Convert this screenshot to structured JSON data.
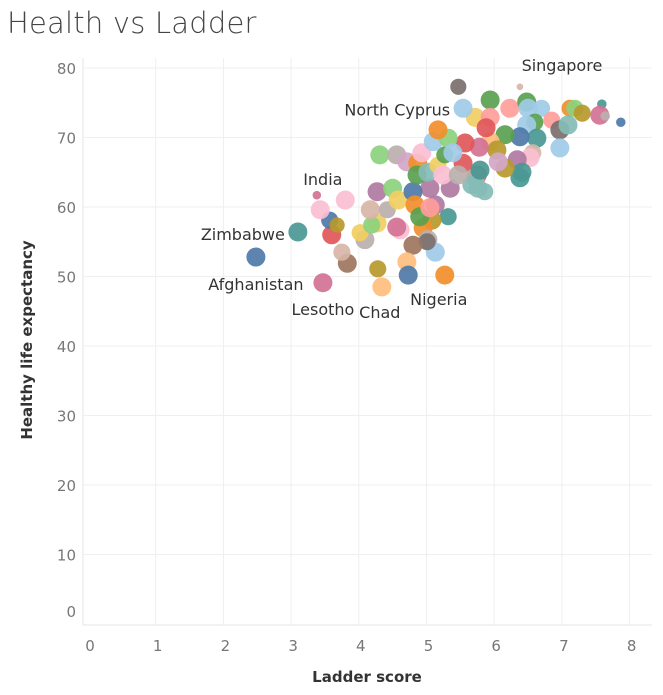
{
  "title": "Health vs Ladder",
  "chart_data": {
    "type": "scatter",
    "title": "Health vs Ladder",
    "xlabel": "Ladder score",
    "ylabel": "Healthy life expectancy",
    "xlim": [
      0,
      8.3
    ],
    "ylim": [
      -2,
      82
    ],
    "xticks": [
      "0",
      "1",
      "2",
      "3",
      "4",
      "5",
      "6",
      "7",
      "8"
    ],
    "yticks": [
      "0",
      "10",
      "20",
      "30",
      "40",
      "50",
      "60",
      "70",
      "80"
    ],
    "grid": true,
    "legend": "none",
    "labeled_points": [
      {
        "label": "Singapore",
        "x": 6.38,
        "y": 77.3,
        "color": "#D7B5A6",
        "size": 0.35
      },
      {
        "label": "North Cyprus",
        "x": 5.54,
        "y": 74.2,
        "color": "#A0CBE8",
        "size": 1
      },
      {
        "label": "India",
        "x": 3.38,
        "y": 61.7,
        "color": "#D37295",
        "size": 0.45
      },
      {
        "label": "Zimbabwe",
        "x": 3.1,
        "y": 56.4,
        "color": "#499894",
        "size": 1
      },
      {
        "label": "Afghanistan",
        "x": 2.48,
        "y": 52.8,
        "color": "#4E79A7",
        "size": 1
      },
      {
        "label": "Lesotho",
        "x": 3.47,
        "y": 49.1,
        "color": "#D37295",
        "size": 1
      },
      {
        "label": "Chad",
        "x": 4.34,
        "y": 48.5,
        "color": "#FFBE7D",
        "size": 1
      },
      {
        "label": "Nigeria",
        "x": 5.27,
        "y": 50.2,
        "color": "#F28E2B",
        "size": 1
      }
    ],
    "points": [
      [
        5.47,
        77.3,
        "#79706E",
        0.85
      ],
      [
        5.94,
        75.4,
        "#59A14F",
        1
      ],
      [
        5.72,
        72.9,
        "#F1CE63",
        1
      ],
      [
        5.94,
        72.9,
        "#FF9D9A",
        1
      ],
      [
        6.23,
        74.2,
        "#FF9D9A",
        1
      ],
      [
        6.48,
        75.1,
        "#59A14F",
        1
      ],
      [
        6.5,
        74.2,
        "#A0CBE8",
        1
      ],
      [
        6.7,
        74.2,
        "#A0CBE8",
        0.9
      ],
      [
        6.6,
        72.2,
        "#59A14F",
        0.9
      ],
      [
        6.48,
        71.8,
        "#A0CBE8",
        1
      ],
      [
        6.85,
        72.5,
        "#FF9D9A",
        0.9
      ],
      [
        7.12,
        74.2,
        "#F28E2B",
        0.9
      ],
      [
        7.19,
        74.2,
        "#8CD17D",
        0.9
      ],
      [
        7.3,
        73.5,
        "#B6992D",
        0.9
      ],
      [
        7.59,
        74.8,
        "#499894",
        0.5
      ],
      [
        7.56,
        73.2,
        "#D37295",
        1
      ],
      [
        7.64,
        73.1,
        "#BAB0AC",
        0.5
      ],
      [
        7.87,
        72.2,
        "#4E79A7",
        0.5
      ],
      [
        6.97,
        71.1,
        "#79706E",
        1
      ],
      [
        7.09,
        71.8,
        "#86BCB6",
        1
      ],
      [
        6.63,
        69.9,
        "#499894",
        1
      ],
      [
        6.97,
        68.5,
        "#A0CBE8",
        1
      ],
      [
        6.38,
        70.1,
        "#4E79A7",
        1
      ],
      [
        6.57,
        67.8,
        "#D7B5A6",
        0.9
      ],
      [
        6.53,
        67.1,
        "#FABFD2",
        1
      ],
      [
        6.34,
        66.8,
        "#B07AA1",
        1
      ],
      [
        6.41,
        65.0,
        "#499894",
        1
      ],
      [
        6.38,
        64.2,
        "#499894",
        1
      ],
      [
        6.16,
        65.6,
        "#B6992D",
        1
      ],
      [
        6.16,
        70.4,
        "#59A14F",
        1
      ],
      [
        5.94,
        69.4,
        "#FFBE7D",
        1
      ],
      [
        6.04,
        68.2,
        "#B6992D",
        1
      ],
      [
        6.06,
        66.5,
        "#D4A6C8",
        1
      ],
      [
        5.88,
        71.4,
        "#E15759",
        1
      ],
      [
        5.78,
        68.6,
        "#D37295",
        1
      ],
      [
        5.57,
        69.2,
        "#E15759",
        1
      ],
      [
        5.54,
        66.3,
        "#E15759",
        1
      ],
      [
        5.75,
        64.6,
        "#E15759",
        1
      ],
      [
        5.72,
        64.3,
        "#BAB0AC",
        1
      ],
      [
        5.76,
        62.7,
        "#86BCB6",
        1
      ],
      [
        5.86,
        62.2,
        "#86BCB6",
        0.9
      ],
      [
        5.67,
        63.2,
        "#86BCB6",
        1
      ],
      [
        5.35,
        62.7,
        "#B07AA1",
        1
      ],
      [
        5.05,
        62.7,
        "#B07AA1",
        1
      ],
      [
        5.13,
        60.3,
        "#B07AA1",
        1
      ],
      [
        5.32,
        58.6,
        "#499894",
        0.9
      ],
      [
        5.08,
        58.1,
        "#B6992D",
        1
      ],
      [
        4.95,
        57.0,
        "#F28E2B",
        1
      ],
      [
        5.02,
        55.3,
        "#BAB0AC",
        1
      ],
      [
        5.13,
        53.5,
        "#A0CBE8",
        1
      ],
      [
        5.01,
        55.0,
        "#79706E",
        0.9
      ],
      [
        4.8,
        54.5,
        "#9D7660",
        1
      ],
      [
        4.71,
        52.1,
        "#FFBE7D",
        1
      ],
      [
        4.73,
        50.2,
        "#4E79A7",
        1
      ],
      [
        4.28,
        51.1,
        "#B6992D",
        0.9
      ],
      [
        3.83,
        51.9,
        "#9D7660",
        1
      ],
      [
        3.75,
        53.5,
        "#D7B5A6",
        0.9
      ],
      [
        3.6,
        56.0,
        "#E15759",
        1
      ],
      [
        3.57,
        58.1,
        "#4E79A7",
        0.9
      ],
      [
        3.68,
        57.4,
        "#B6992D",
        0.8
      ],
      [
        3.43,
        59.6,
        "#FABFD2",
        1
      ],
      [
        3.8,
        61.0,
        "#FABFD2",
        1
      ],
      [
        4.09,
        55.3,
        "#BAB0AC",
        1
      ],
      [
        4.02,
        56.3,
        "#F1CE63",
        0.9
      ],
      [
        4.27,
        57.7,
        "#F1CE63",
        1
      ],
      [
        4.19,
        57.4,
        "#8CD17D",
        0.9
      ],
      [
        4.17,
        59.6,
        "#D7B5A6",
        1
      ],
      [
        4.42,
        59.6,
        "#BAB0AC",
        0.9
      ],
      [
        4.27,
        62.2,
        "#B07AA1",
        1
      ],
      [
        4.5,
        62.7,
        "#8CD17D",
        1
      ],
      [
        4.58,
        61.0,
        "#F1CE63",
        1
      ],
      [
        4.61,
        56.7,
        "#FABFD2",
        1
      ],
      [
        4.56,
        57.1,
        "#D37295",
        1
      ],
      [
        4.8,
        62.2,
        "#4E79A7",
        1
      ],
      [
        4.83,
        60.3,
        "#F28E2B",
        1
      ],
      [
        4.9,
        58.6,
        "#59A14F",
        1
      ],
      [
        5.05,
        59.9,
        "#FF9D9A",
        1
      ],
      [
        4.31,
        67.5,
        "#8CD17D",
        1
      ],
      [
        4.56,
        67.5,
        "#BAB0AC",
        1
      ],
      [
        4.71,
        66.5,
        "#D4A6C8",
        1
      ],
      [
        4.87,
        66.3,
        "#F28E2B",
        1
      ],
      [
        4.93,
        67.8,
        "#FABFD2",
        1
      ],
      [
        4.86,
        64.6,
        "#59A14F",
        1
      ],
      [
        5.02,
        65.0,
        "#86BCB6",
        1
      ],
      [
        5.17,
        66.0,
        "#F1CE63",
        0.9
      ],
      [
        5.27,
        67.5,
        "#59A14F",
        0.9
      ],
      [
        5.1,
        69.4,
        "#A0CBE8",
        1
      ],
      [
        5.32,
        69.9,
        "#8CD17D",
        1
      ],
      [
        5.17,
        71.1,
        "#F28E2B",
        1
      ],
      [
        5.24,
        64.6,
        "#FABFD2",
        1
      ],
      [
        5.47,
        64.6,
        "#BAB0AC",
        1
      ],
      [
        5.39,
        67.8,
        "#A0CBE8",
        1
      ],
      [
        5.79,
        65.3,
        "#499894",
        1
      ]
    ]
  }
}
